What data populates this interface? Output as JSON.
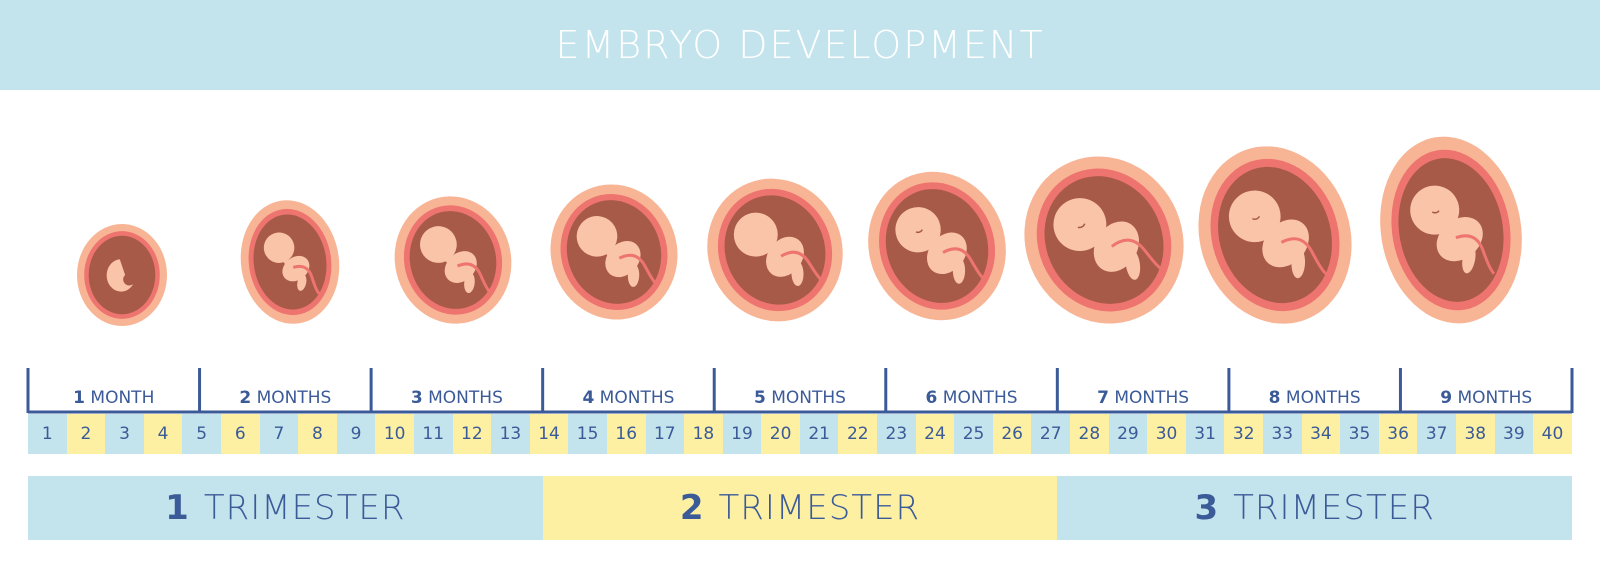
{
  "title": "EMBRYO DEVELOPMENT",
  "months": [
    {
      "num": "1",
      "word": "MONTH"
    },
    {
      "num": "2",
      "word": "MONTHS"
    },
    {
      "num": "3",
      "word": "MONTHS"
    },
    {
      "num": "4",
      "word": "MONTHS"
    },
    {
      "num": "5",
      "word": "MONTHS"
    },
    {
      "num": "6",
      "word": "MONTHS"
    },
    {
      "num": "7",
      "word": "MONTHS"
    },
    {
      "num": "8",
      "word": "MONTHS"
    },
    {
      "num": "9",
      "word": "MONTHS"
    }
  ],
  "weeks": [
    "1",
    "2",
    "3",
    "4",
    "5",
    "6",
    "7",
    "8",
    "9",
    "10",
    "11",
    "12",
    "13",
    "14",
    "15",
    "16",
    "17",
    "18",
    "19",
    "20",
    "21",
    "22",
    "23",
    "24",
    "25",
    "26",
    "27",
    "28",
    "29",
    "30",
    "31",
    "32",
    "33",
    "34",
    "35",
    "36",
    "37",
    "38",
    "39",
    "40"
  ],
  "trimesters": [
    {
      "num": "1",
      "word": "TRIMESTER"
    },
    {
      "num": "2",
      "word": "TRIMESTER"
    },
    {
      "num": "3",
      "word": "TRIMESTER"
    }
  ],
  "colors": {
    "header": "#c3e3ed",
    "blue": "#c3e3ed",
    "yellow": "#fdf0a3",
    "text": "#3b5a98",
    "outer": "#f8b595",
    "ring": "#ee7470",
    "cavity": "#a85a48",
    "skin": "#fac4a8"
  },
  "embryo_icons": [
    "embryo-month-1",
    "embryo-month-2",
    "embryo-month-3",
    "embryo-month-4",
    "embryo-month-5",
    "embryo-month-6",
    "embryo-month-7",
    "embryo-month-8",
    "embryo-month-9"
  ]
}
